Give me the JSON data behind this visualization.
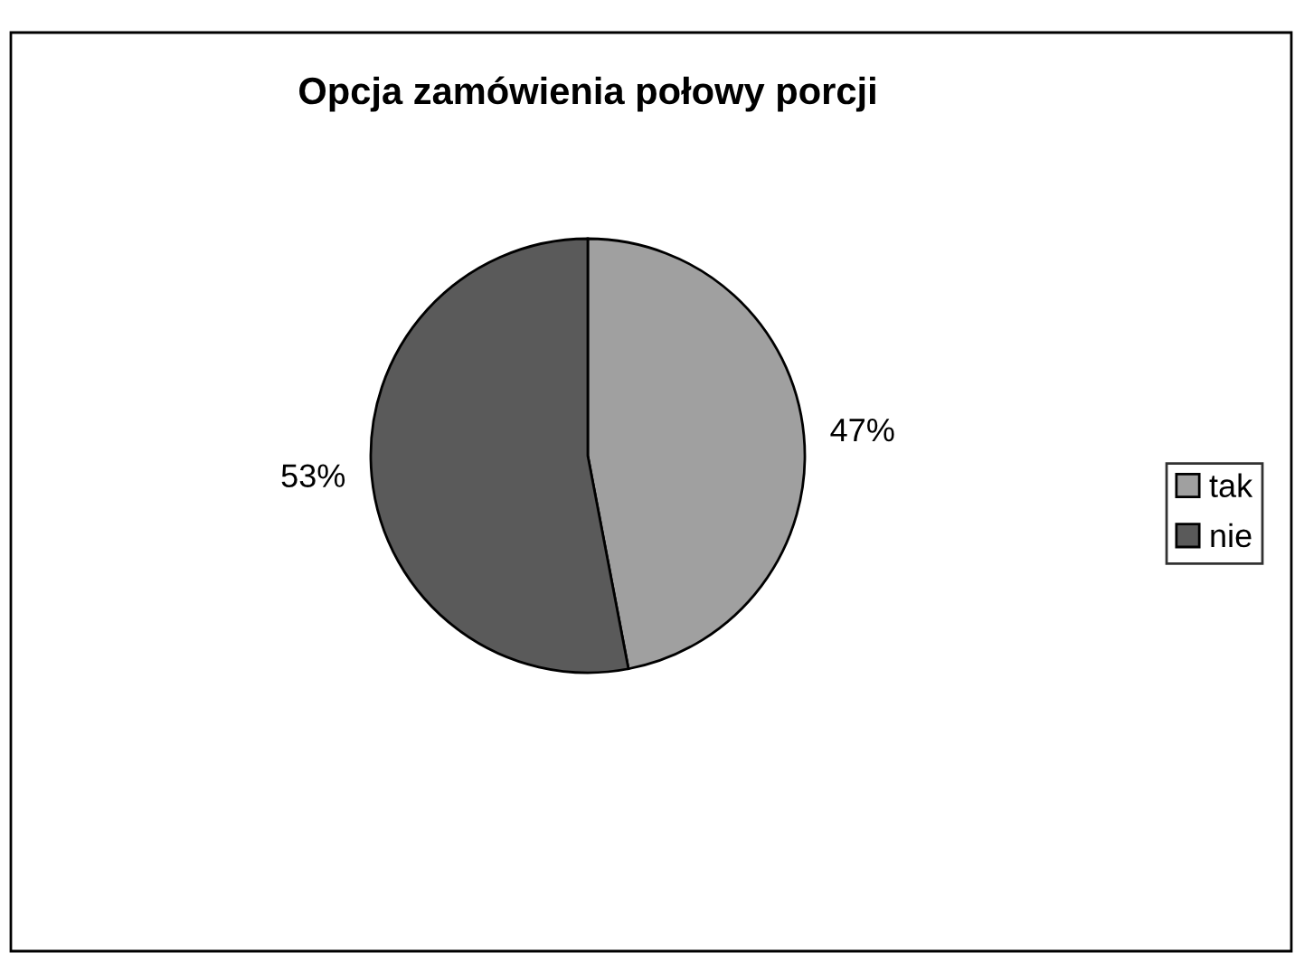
{
  "chart_data": {
    "type": "pie",
    "title": "Opcja zamówienia połowy porcji",
    "categories": [
      "tak",
      "nie"
    ],
    "values": [
      47,
      53
    ],
    "colors": [
      "#a0a0a0",
      "#5a5a5a"
    ],
    "value_labels": [
      "47%",
      "53%"
    ],
    "legend": "right"
  }
}
